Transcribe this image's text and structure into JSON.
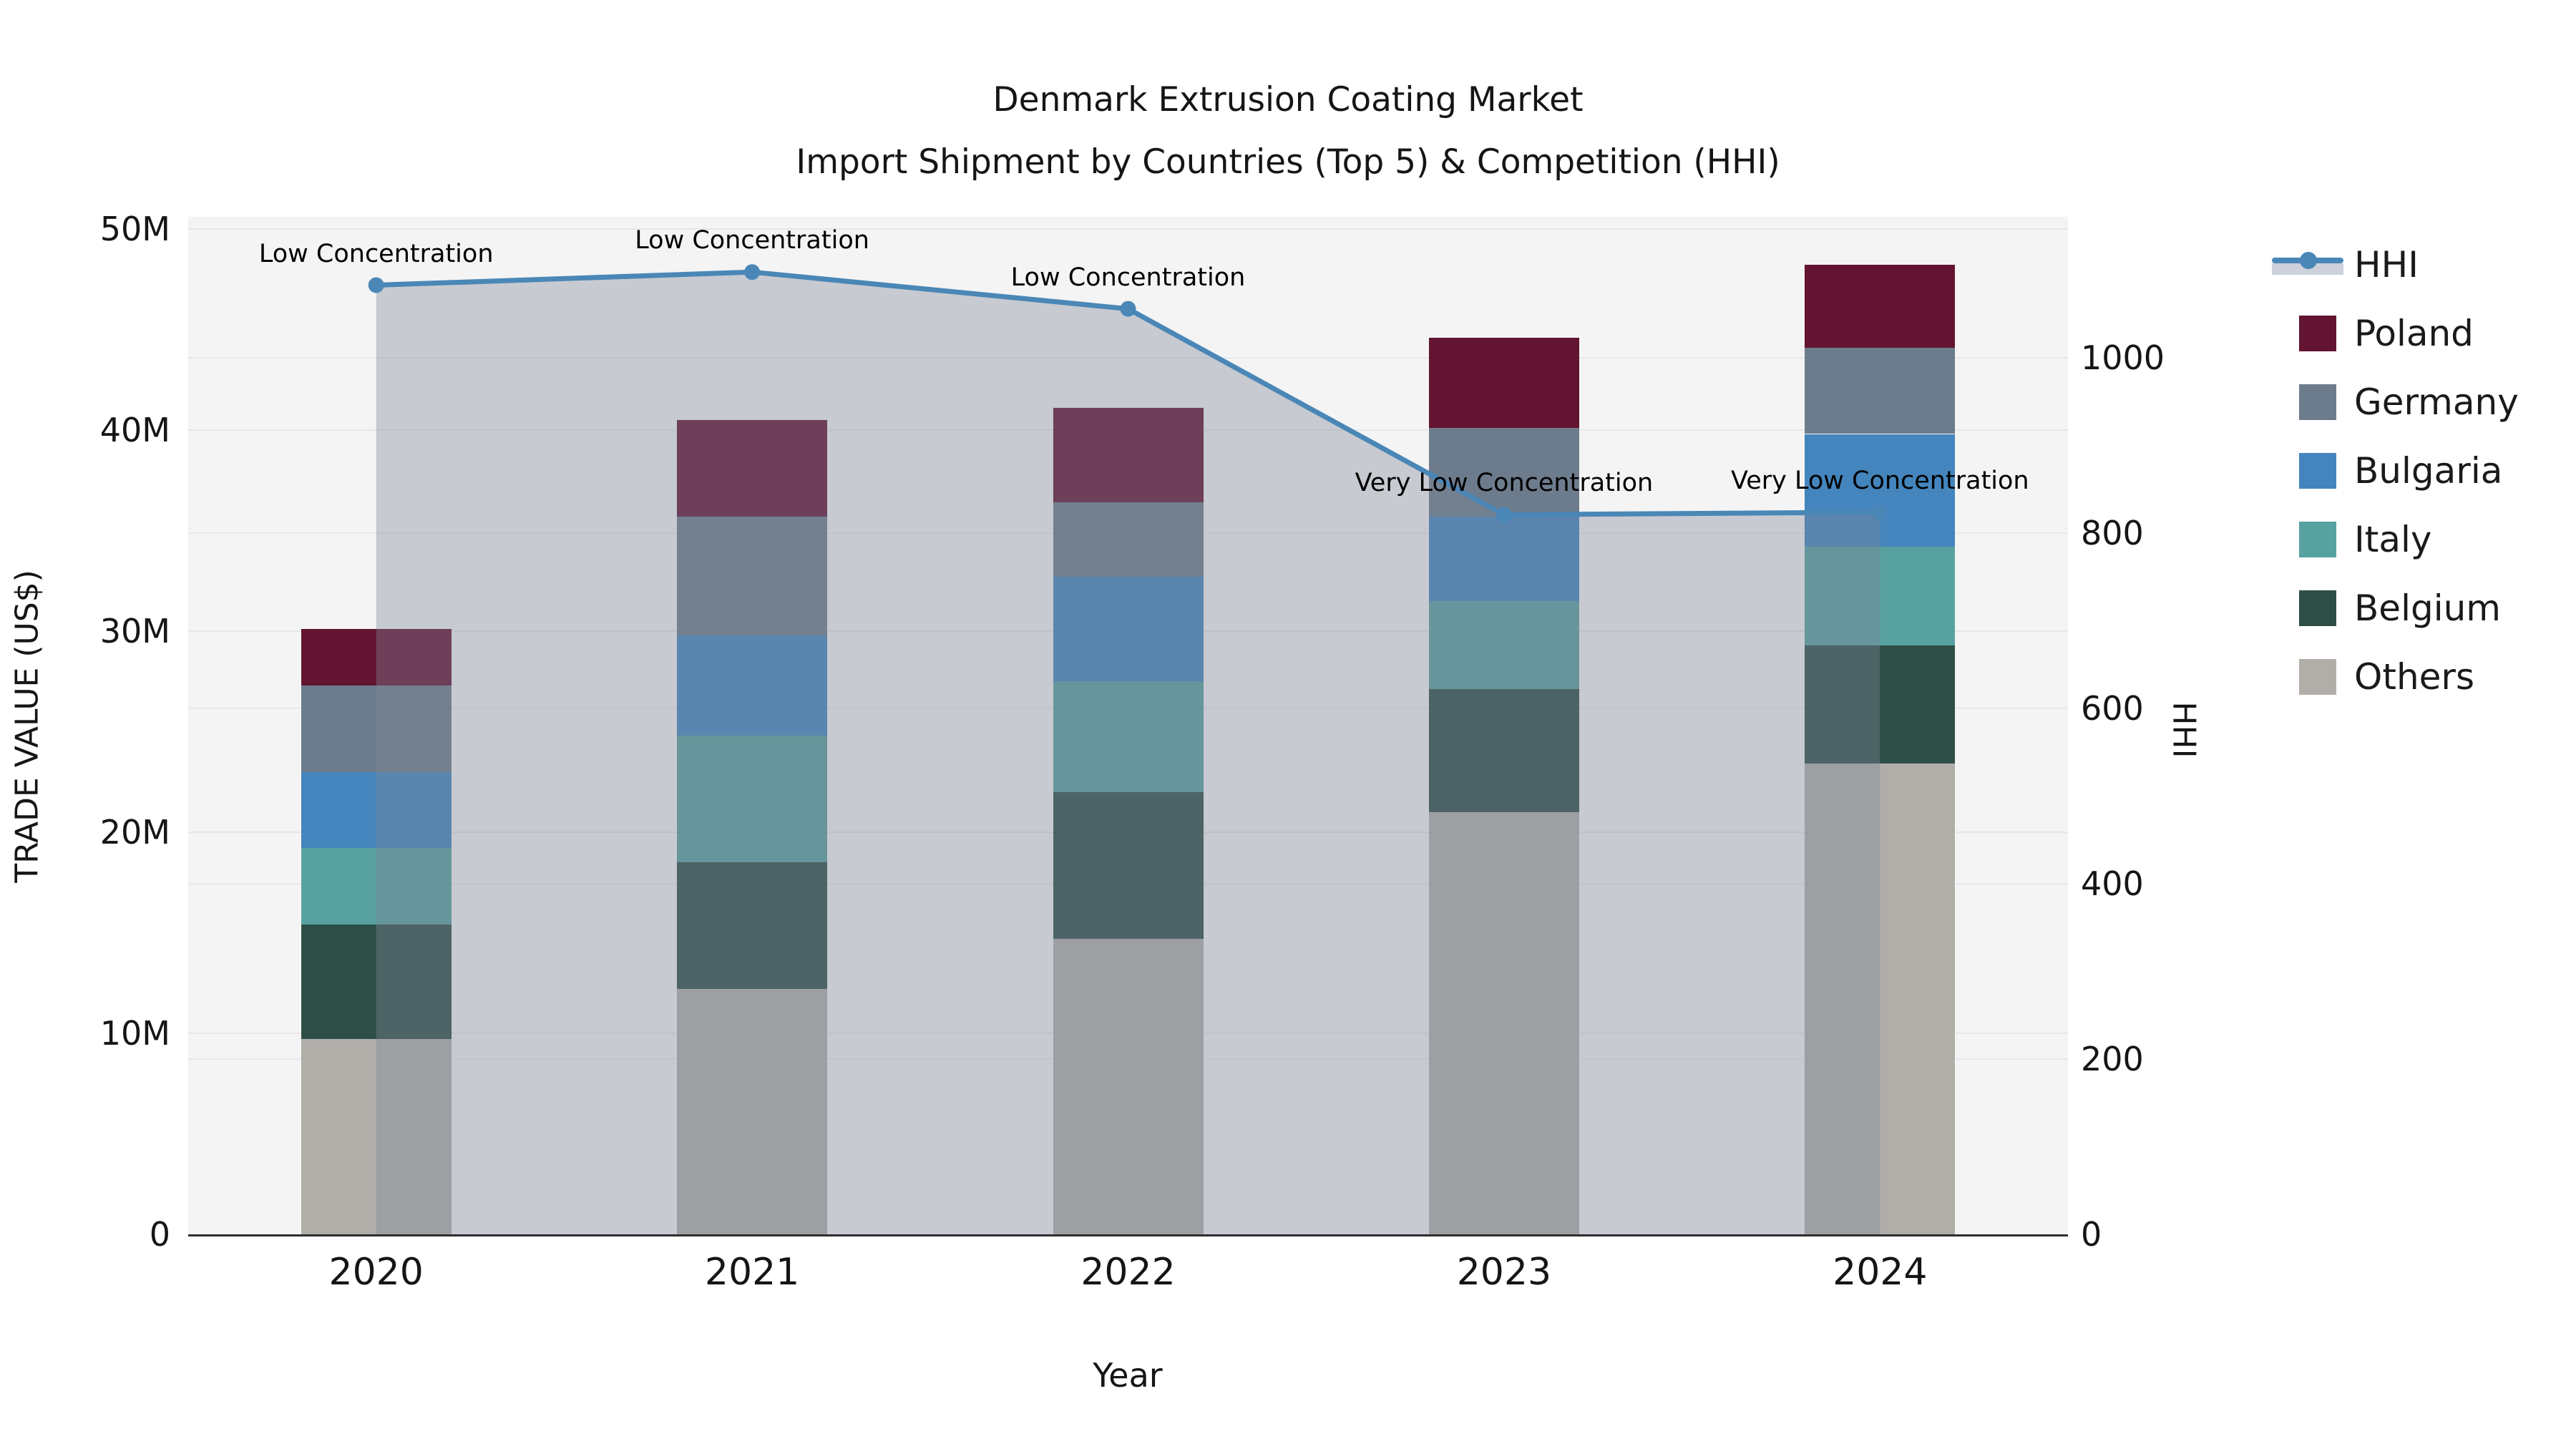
{
  "title": {
    "line1": "Denmark Extrusion Coating Market",
    "line2": "Import Shipment by Countries (Top 5) & Competition (HHI)"
  },
  "axes": {
    "y_left": {
      "label": "TRADE VALUE (US$)",
      "ticks": [
        "0",
        "10M",
        "20M",
        "30M",
        "40M",
        "50M"
      ]
    },
    "y_right": {
      "label": "HHI",
      "ticks": [
        "0",
        "200",
        "400",
        "600",
        "800",
        "1000"
      ]
    },
    "x": {
      "label": "Year",
      "ticks": [
        "2020",
        "2021",
        "2022",
        "2023",
        "2024"
      ]
    }
  },
  "legend": [
    {
      "label": "HHI",
      "type": "line",
      "color": "#4a87b7"
    },
    {
      "label": "Poland",
      "type": "box",
      "color": "#631432"
    },
    {
      "label": "Germany",
      "type": "box",
      "color": "#6d7c8d"
    },
    {
      "label": "Bulgaria",
      "type": "box",
      "color": "#4485bd"
    },
    {
      "label": "Italy",
      "type": "box",
      "color": "#58a1a1"
    },
    {
      "label": "Belgium",
      "type": "box",
      "color": "#2e4f47"
    },
    {
      "label": "Others",
      "type": "box",
      "color": "#b1aeaa"
    }
  ],
  "chart_data": {
    "type": "combo: stacked-bar (left axis) + line-with-area (right axis)",
    "title": "Denmark Extrusion Coating Market — Import Shipment by Countries (Top 5) & Competition (HHI)",
    "xlabel": "Year",
    "ylabel_left": "TRADE VALUE (US$)",
    "ylabel_right": "HHI",
    "unit_left": "million US$",
    "categories": [
      "2020",
      "2021",
      "2022",
      "2023",
      "2024"
    ],
    "stack_order_bottom_to_top": [
      "Others",
      "Belgium",
      "Italy",
      "Bulgaria",
      "Germany",
      "Poland"
    ],
    "series": [
      {
        "name": "Others",
        "color": "#b1aeaa",
        "values": [
          9.7,
          12.2,
          14.7,
          21.0,
          23.4
        ]
      },
      {
        "name": "Belgium",
        "color": "#2e4f47",
        "values": [
          5.7,
          6.3,
          7.3,
          6.1,
          5.9
        ]
      },
      {
        "name": "Italy",
        "color": "#58a1a1",
        "values": [
          3.8,
          6.3,
          5.5,
          4.4,
          4.9
        ]
      },
      {
        "name": "Bulgaria",
        "color": "#4485bd",
        "values": [
          3.8,
          5.0,
          5.2,
          4.2,
          5.6
        ]
      },
      {
        "name": "Germany",
        "color": "#6d7c8d",
        "values": [
          4.3,
          5.9,
          3.7,
          4.4,
          4.3
        ]
      },
      {
        "name": "Poland",
        "color": "#631432",
        "values": [
          2.8,
          4.8,
          4.7,
          4.5,
          4.1
        ]
      }
    ],
    "bar_totals": [
      30.1,
      40.5,
      41.1,
      44.6,
      48.2
    ],
    "line": {
      "name": "HHI",
      "axis": "right",
      "color": "#4a87b7",
      "area_fill": "rgba(125,133,150,0.38)",
      "values": [
        1083,
        1098,
        1056,
        821,
        824
      ]
    },
    "annotations": [
      {
        "category": "2020",
        "text": "Low Concentration"
      },
      {
        "category": "2021",
        "text": "Low Concentration"
      },
      {
        "category": "2022",
        "text": "Low Concentration"
      },
      {
        "category": "2023",
        "text": "Very Low Concentration"
      },
      {
        "category": "2024",
        "text": "Very Low Concentration"
      }
    ],
    "axis_ranges": {
      "left_M": [
        0,
        50.6
      ],
      "right_HHI": [
        0,
        1161
      ]
    },
    "grid": true,
    "legend_position": "right"
  }
}
